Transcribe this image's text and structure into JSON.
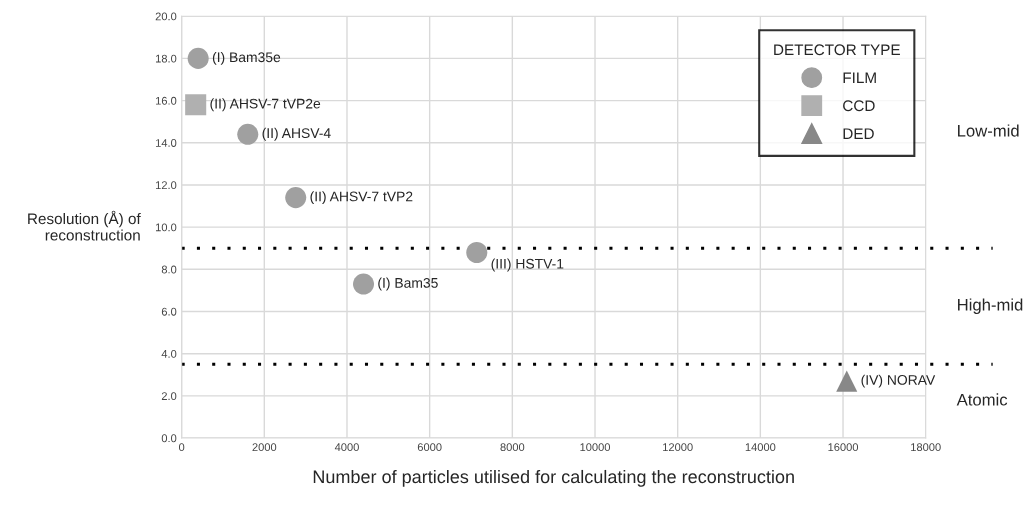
{
  "chart_data": {
    "type": "scatter",
    "xlabel": "Number of particles utilised for calculating the reconstruction",
    "ylabel": "Resolution (Å) of\nreconstruction",
    "legend_title": "DETECTOR TYPE",
    "series": [
      {
        "name": "FILM",
        "color": "#a0a0a0",
        "marker": "circle",
        "x": [
          400,
          1600,
          2760,
          7140,
          4400
        ],
        "values": [
          18.0,
          14.4,
          11.4,
          8.8,
          7.3
        ]
      },
      {
        "name": "CCD",
        "color": "#b0b0b0",
        "marker": "square",
        "x": [
          340
        ],
        "values": [
          15.8
        ]
      },
      {
        "name": "DED",
        "color": "#888888",
        "marker": "triangle",
        "x": [
          16090
        ],
        "values": [
          2.7
        ]
      }
    ],
    "annotations": [
      {
        "text": "(I) Bam35e",
        "x": 400,
        "y": 18.0
      },
      {
        "text": "(II) AHSV-7 tVP2e",
        "x": 340,
        "y": 15.8
      },
      {
        "text": "(II) AHSV-4",
        "x": 1600,
        "y": 14.4
      },
      {
        "text": "(II) AHSV-7 tVP2",
        "x": 2760,
        "y": 11.4
      },
      {
        "text": "(III) HSTV-1",
        "x": 7140,
        "y": 8.8
      },
      {
        "text": "(I) Bam35",
        "x": 4400,
        "y": 7.3
      },
      {
        "text": "(IV) NORAV",
        "x": 16090,
        "y": 2.7
      },
      "Low-mid",
      "High-mid",
      "Atomic"
    ],
    "ref_lines": [
      {
        "axis": "y",
        "value": 9.0,
        "color": "#000000",
        "line_style": "dotted"
      },
      {
        "axis": "y",
        "value": 3.5,
        "color": "#000000",
        "line_style": "dotted"
      }
    ],
    "xlim": [
      0,
      18000
    ],
    "xticks": [
      0,
      2000,
      4000,
      6000,
      8000,
      10000,
      12000,
      14000,
      16000,
      18000
    ],
    "ylim": [
      0,
      20
    ],
    "yticks": [
      {
        "value": 0,
        "label": "0.0"
      },
      {
        "value": 2,
        "label": "2.0"
      },
      {
        "value": 4,
        "label": "4.0"
      },
      {
        "value": 6,
        "label": "6.0"
      },
      {
        "value": 8,
        "label": "8.0"
      },
      {
        "value": 10,
        "label": "10.0"
      },
      {
        "value": 12,
        "label": "12.0"
      },
      {
        "value": 14,
        "label": "14.0"
      },
      {
        "value": 16,
        "label": "16.0"
      },
      {
        "value": 18,
        "label": "18.0"
      },
      {
        "value": 20,
        "label": "20.0"
      }
    ],
    "grid": true,
    "legend": "top right"
  }
}
